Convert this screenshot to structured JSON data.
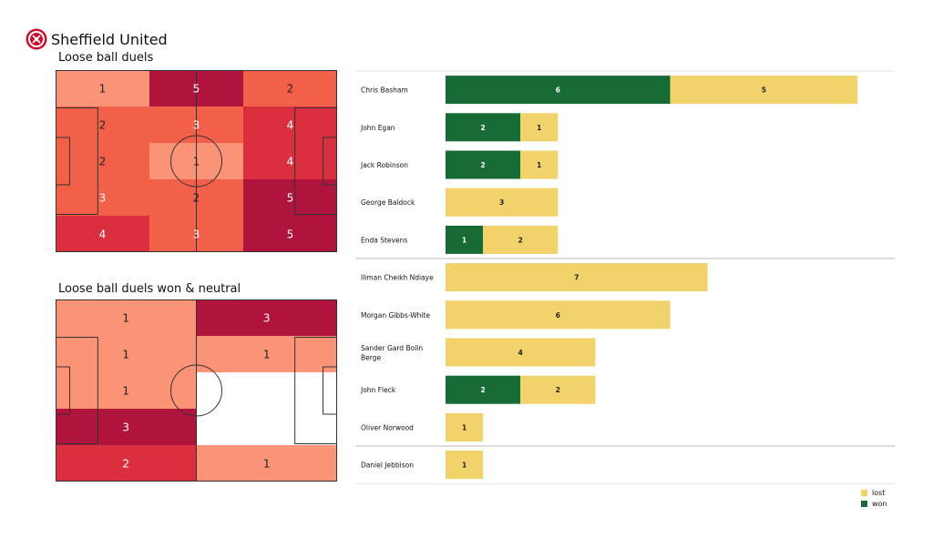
{
  "header": {
    "team_name": "Sheffield United",
    "logo_icon": "sheffield-united-crest-icon"
  },
  "colors": {
    "won": "#176b35",
    "lost": "#f2d26b",
    "heat": [
      "#fdbfb2",
      "#fb9377",
      "#f3604a",
      "#d92f3f",
      "#b0143c"
    ]
  },
  "chart_data": [
    {
      "type": "heatmap",
      "title": "Loose ball duels",
      "grid": [
        [
          1,
          5,
          2
        ],
        [
          2,
          3,
          4
        ],
        [
          2,
          1,
          4
        ],
        [
          3,
          2,
          5
        ],
        [
          4,
          3,
          5
        ]
      ]
    },
    {
      "type": "heatmap",
      "title": "Loose ball duels won & neutral",
      "grid": [
        [
          1,
          3
        ],
        [
          1,
          1
        ],
        [
          1,
          null
        ],
        [
          3,
          null
        ],
        [
          2,
          1
        ]
      ]
    },
    {
      "type": "bar",
      "stacked": true,
      "orientation": "horizontal",
      "categories": [
        "Chris Basham",
        "John Egan",
        "Jack Robinson",
        "George Baldock",
        "Enda Stevens",
        "Iliman Cheikh Ndiaye",
        "Morgan Gibbs-White",
        "Sander Gard Bolin Berge",
        "John Fleck",
        "Oliver Norwood",
        "Daniel Jebbison"
      ],
      "series": [
        {
          "name": "won",
          "values": [
            6,
            2,
            2,
            0,
            1,
            0,
            0,
            0,
            2,
            0,
            0
          ]
        },
        {
          "name": "lost",
          "values": [
            5,
            1,
            1,
            3,
            2,
            7,
            6,
            4,
            2,
            1,
            1
          ]
        }
      ],
      "legend_position": "bottom-right"
    }
  ]
}
